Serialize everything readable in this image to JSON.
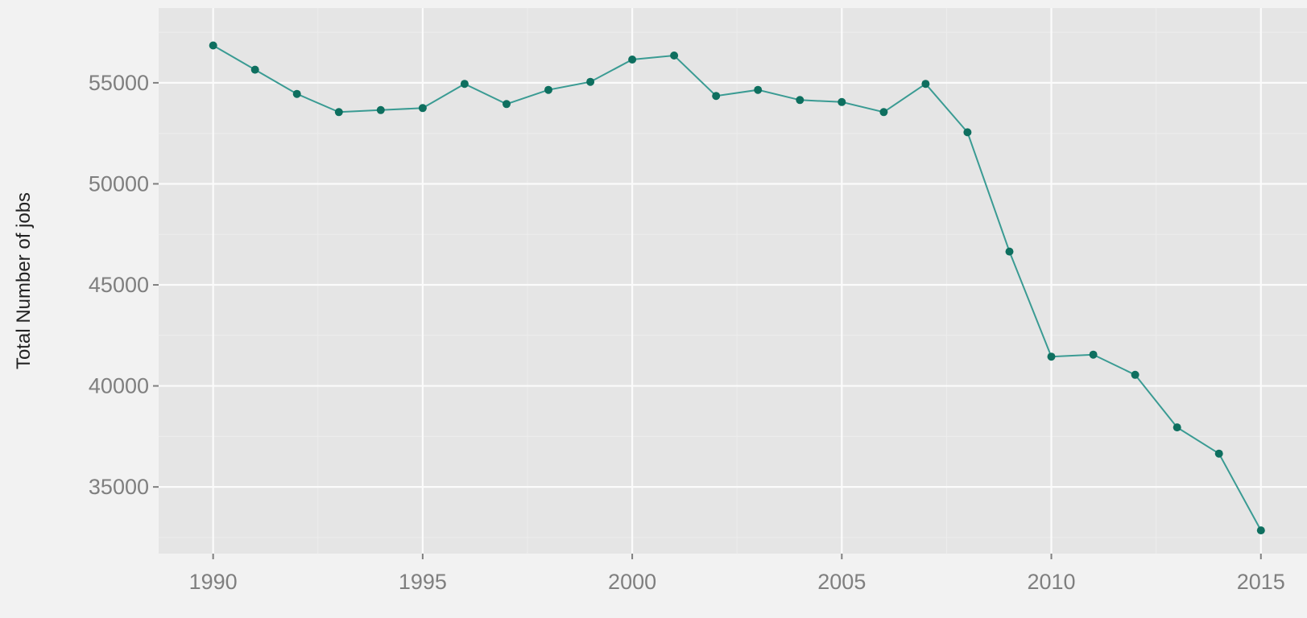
{
  "chart_data": {
    "type": "line",
    "title": "",
    "xlabel": "",
    "ylabel": "Total Number of jobs",
    "x": [
      1990,
      1991,
      1992,
      1993,
      1994,
      1995,
      1996,
      1997,
      1998,
      1999,
      2000,
      2001,
      2002,
      2003,
      2004,
      2005,
      2006,
      2007,
      2008,
      2009,
      2010,
      2011,
      2012,
      2013,
      2014,
      2015
    ],
    "series": [
      {
        "values": [
          56850,
          55650,
          54450,
          53550,
          53650,
          53750,
          54950,
          53950,
          54650,
          55050,
          56150,
          56350,
          54350,
          54650,
          54150,
          54050,
          53550,
          54950,
          52550,
          46650,
          41450,
          41550,
          40550,
          37950,
          36650,
          32850
        ]
      }
    ],
    "xlim": [
      1988.7,
      2016.1
    ],
    "ylim": [
      31700,
      58700
    ],
    "x_ticks": [
      "1990",
      "1995",
      "2000",
      "2005",
      "2010",
      "2015"
    ],
    "y_ticks": [
      "35000",
      "40000",
      "45000",
      "50000",
      "55000"
    ],
    "grid": true,
    "legend": "none",
    "colors": {
      "line": "#3a9b93",
      "point": "#0e6f5f",
      "panel": "#e5e5e5",
      "background": "#f2f2f2"
    }
  }
}
